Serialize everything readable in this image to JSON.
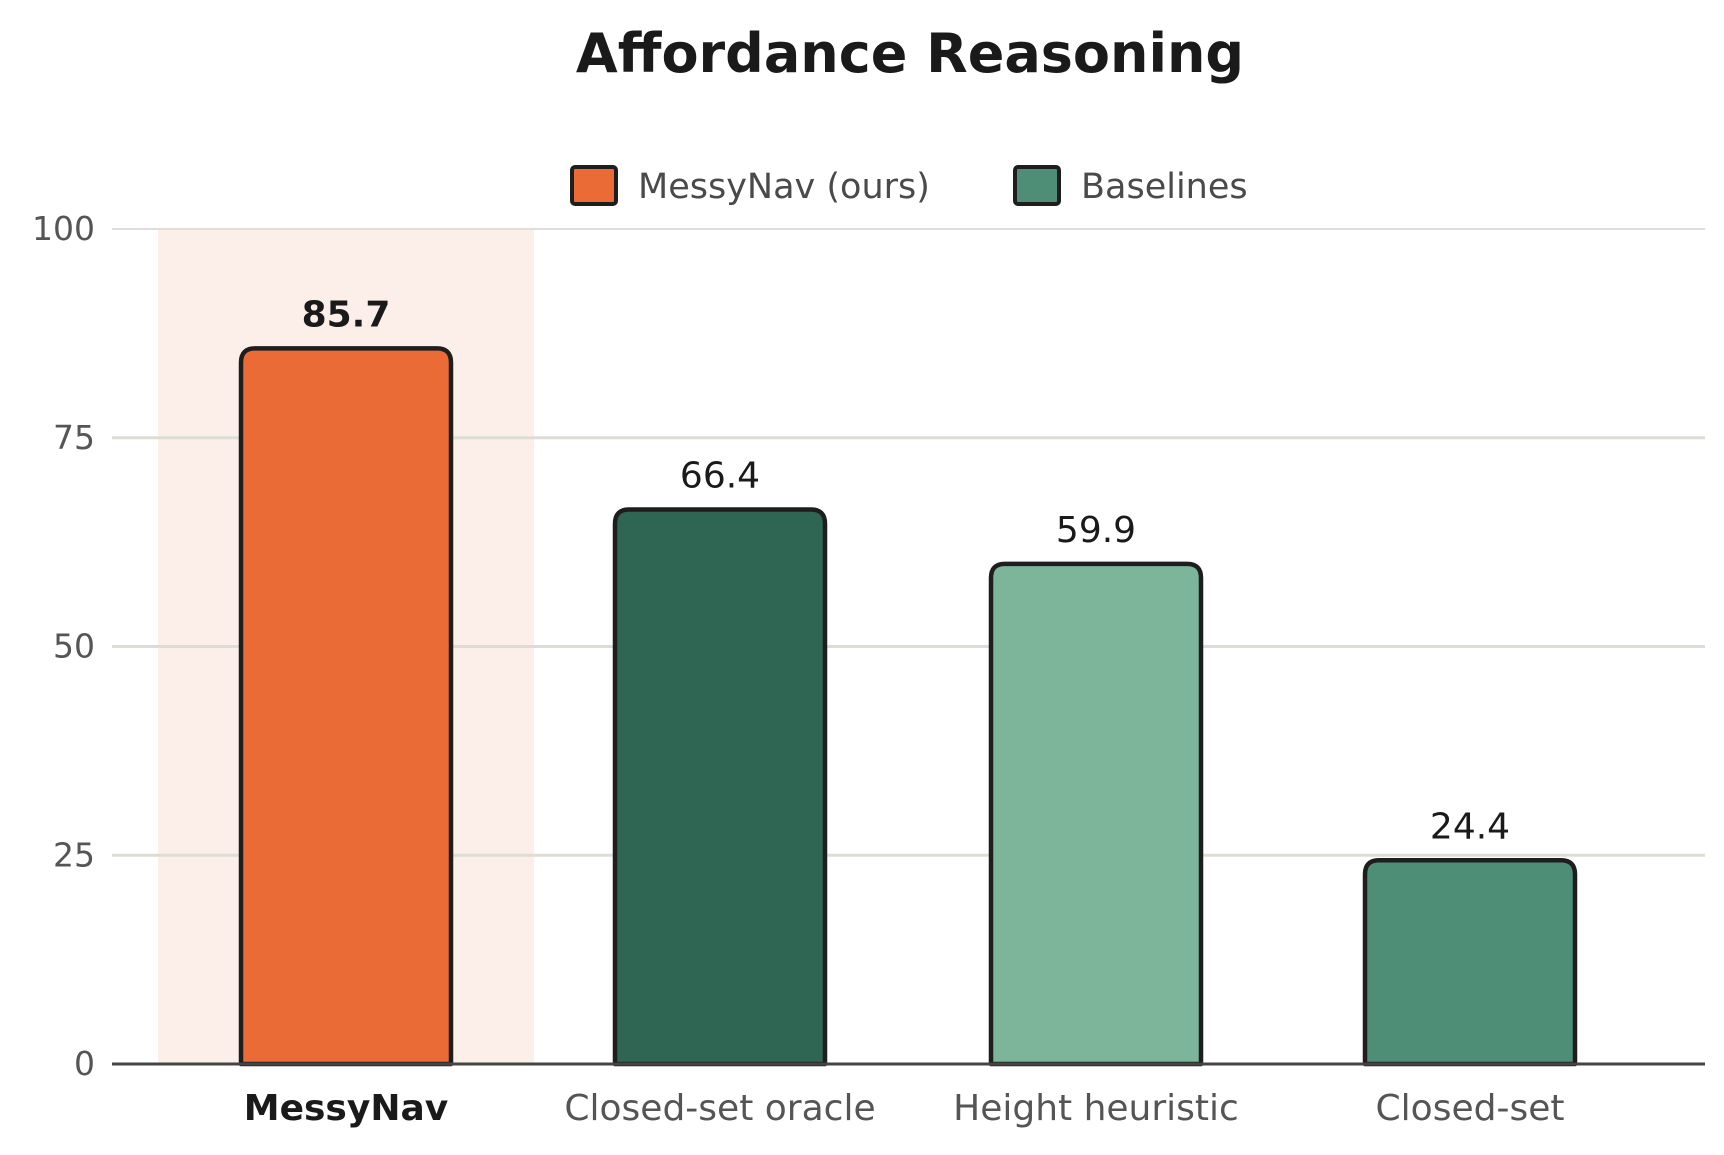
{
  "chart_data": {
    "type": "bar",
    "title": "Affordance Reasoning",
    "xlabel": "",
    "ylabel": "",
    "categories": [
      "MessyNav",
      "Closed-set oracle",
      "Height heuristic",
      "Closed-set"
    ],
    "values": [
      85.7,
      66.4,
      59.9,
      24.4
    ],
    "value_labels": [
      "85.7",
      "66.4",
      "59.9",
      "24.4"
    ],
    "highlight_index": 0,
    "bar_colors": [
      "#EB6B36",
      "#2E6653",
      "#7DB59B",
      "#4E8E76"
    ],
    "ylim": [
      0,
      100
    ],
    "yticks": [
      0,
      25,
      50,
      75,
      100
    ],
    "ytick_labels": [
      "0",
      "25",
      "50",
      "75",
      "100"
    ],
    "grid": true,
    "legend": {
      "placement": "top-center",
      "entries": [
        {
          "label": "MessyNav (ours)",
          "color": "#EB6B36"
        },
        {
          "label": "Baselines",
          "color": "#4E8E76"
        }
      ]
    },
    "colors": {
      "highlight_band": "#FCEFEA",
      "grid": "#DDDDD5",
      "top_grid": "#DDDDDD",
      "axis": "#444444",
      "bar_outline": "#1E1E1E"
    }
  }
}
